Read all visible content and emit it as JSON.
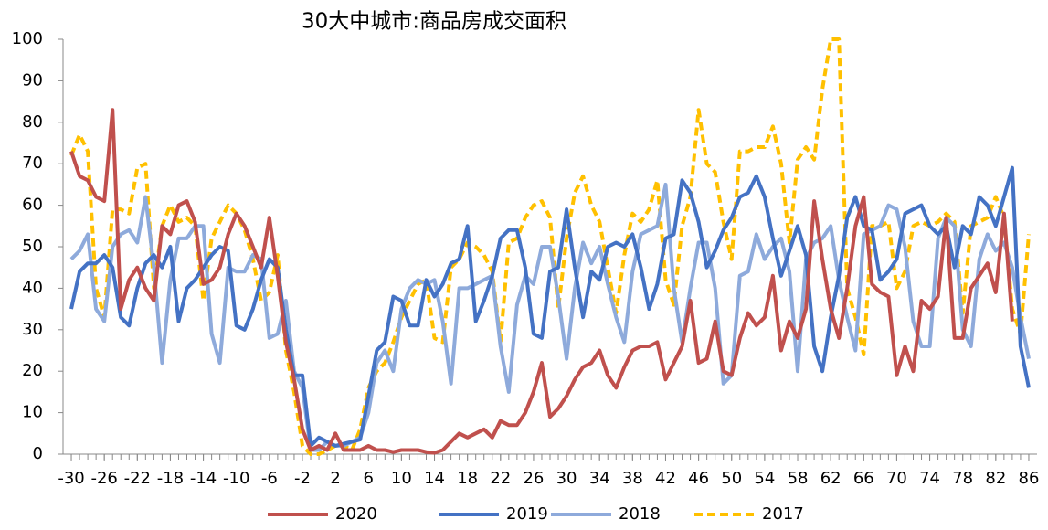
{
  "chart_data": {
    "type": "line",
    "title": "30大中城市:商品房成交面积",
    "x": [
      -30,
      -29,
      -28,
      -27,
      -26,
      -25,
      -24,
      -23,
      -22,
      -21,
      -20,
      -19,
      -18,
      -17,
      -16,
      -15,
      -14,
      -13,
      -12,
      -11,
      -10,
      -9,
      -8,
      -7,
      -6,
      -5,
      -4,
      -3,
      -2,
      -1,
      0,
      1,
      2,
      3,
      4,
      5,
      6,
      7,
      8,
      9,
      10,
      11,
      12,
      13,
      14,
      15,
      16,
      17,
      18,
      19,
      20,
      21,
      22,
      23,
      24,
      25,
      26,
      27,
      28,
      29,
      30,
      31,
      32,
      33,
      34,
      35,
      36,
      37,
      38,
      39,
      40,
      41,
      42,
      43,
      44,
      45,
      46,
      47,
      48,
      49,
      50,
      51,
      52,
      53,
      54,
      55,
      56,
      57,
      58,
      59,
      60,
      61,
      62,
      63,
      64,
      65,
      66,
      67,
      68,
      69,
      70,
      71,
      72,
      73,
      74,
      75,
      76,
      77,
      78,
      79,
      80,
      81,
      82,
      83,
      84,
      85,
      86
    ],
    "series": [
      {
        "name": "2020",
        "color": "#c0504d",
        "style": "solid",
        "values": [
          73,
          67,
          66,
          62,
          61,
          83,
          35,
          42,
          45,
          40,
          37,
          55,
          53,
          60,
          61,
          56,
          41,
          42,
          45,
          53,
          58,
          55,
          50,
          45,
          57,
          43,
          27,
          18,
          6,
          1,
          2,
          1,
          5,
          1,
          1,
          1,
          2,
          1,
          1,
          0.5,
          1,
          1,
          1,
          0.5,
          0.3,
          1,
          3,
          5,
          4,
          5,
          6,
          4,
          8,
          7,
          7,
          10,
          15,
          22,
          9,
          11,
          14,
          18,
          21,
          22,
          25,
          19,
          16,
          21,
          25,
          26,
          26,
          27,
          18,
          22,
          26,
          37,
          22,
          23,
          32,
          20,
          19,
          28,
          34,
          31,
          33,
          43,
          25,
          32,
          28,
          35,
          61,
          47,
          35,
          28,
          40,
          55,
          62,
          41,
          39,
          38,
          19,
          26,
          20,
          37,
          35,
          38,
          57,
          28,
          28,
          40,
          43,
          46,
          39,
          58,
          32,
          null,
          null
        ]
      },
      {
        "name": "2019",
        "color": "#4472c4",
        "style": "solid",
        "values": [
          35,
          44,
          46,
          46,
          48,
          45,
          33,
          31,
          40,
          46,
          48,
          45,
          50,
          32,
          40,
          42,
          45,
          48,
          50,
          49,
          31,
          30,
          35,
          42,
          47,
          45,
          30,
          19,
          19,
          2,
          4,
          3,
          2,
          2.5,
          3,
          3.5,
          14,
          25,
          27,
          38,
          37,
          31,
          31,
          42,
          38,
          41,
          46,
          47,
          55,
          32,
          37,
          43,
          52,
          54,
          54,
          45,
          29,
          28,
          44,
          45,
          59,
          45,
          33,
          44,
          42,
          50,
          51,
          50,
          53,
          45,
          35,
          41,
          52,
          53,
          66,
          63,
          56,
          45,
          49,
          54,
          57,
          62,
          63,
          67,
          62,
          52,
          43,
          49,
          55,
          48,
          26,
          20,
          33,
          43,
          57,
          62,
          55,
          54,
          42,
          44,
          47,
          58,
          59,
          60,
          55,
          53,
          55,
          45,
          55,
          53,
          62,
          60,
          55,
          62,
          69,
          26,
          16
        ]
      },
      {
        "name": "2018",
        "color": "#8eaadb",
        "style": "solid",
        "values": [
          47,
          49,
          53,
          35,
          32,
          50,
          53,
          54,
          51,
          62,
          45,
          22,
          42,
          52,
          52,
          55,
          55,
          29,
          22,
          45,
          44,
          44,
          48,
          47,
          28,
          29,
          37,
          20,
          16,
          1,
          1,
          3,
          2,
          2,
          3,
          4,
          10,
          22,
          25,
          20,
          35,
          40,
          42,
          41,
          42,
          32,
          17,
          40,
          40,
          41,
          42,
          43,
          26,
          15,
          36,
          43,
          41,
          50,
          50,
          38,
          23,
          40,
          51,
          46,
          50,
          41,
          33,
          27,
          44,
          53,
          54,
          55,
          65,
          40,
          27,
          40,
          51,
          51,
          40,
          17,
          19,
          43,
          44,
          53,
          47,
          50,
          52,
          44,
          20,
          47,
          51,
          52,
          55,
          42,
          33,
          25,
          53,
          54,
          55,
          60,
          59,
          50,
          32,
          26,
          26,
          52,
          57,
          55,
          30,
          26,
          47,
          53,
          49,
          51,
          45,
          33,
          23
        ]
      },
      {
        "name": "2017",
        "color": "#ffc000",
        "style": "dashed",
        "values": [
          72,
          77,
          73,
          40,
          33,
          59,
          59,
          58,
          69,
          70,
          40,
          55,
          60,
          56,
          57,
          55,
          37,
          52,
          56,
          60,
          58,
          54,
          47,
          37,
          39,
          48,
          25,
          15,
          2,
          0,
          0,
          1,
          2,
          2,
          1,
          6,
          16,
          20,
          22,
          27,
          33,
          37,
          41,
          42,
          28,
          27,
          45,
          47,
          51,
          50,
          48,
          44,
          27,
          51,
          52,
          57,
          60,
          61,
          57,
          35,
          52,
          63,
          67,
          60,
          56,
          45,
          34,
          48,
          58,
          56,
          59,
          66,
          42,
          36,
          55,
          62,
          83,
          70,
          68,
          56,
          47,
          73,
          73,
          74,
          74,
          79,
          70,
          51,
          71,
          74,
          71,
          88,
          100,
          100,
          40,
          33,
          24,
          55,
          55,
          56,
          40,
          44,
          55,
          56,
          55,
          56,
          58,
          56,
          34,
          55,
          56,
          57,
          62,
          57,
          35,
          29,
          53
        ]
      }
    ],
    "xlim": [
      -31,
      87
    ],
    "xticks": [
      -30,
      -26,
      -22,
      -18,
      -14,
      -10,
      -6,
      -2,
      2,
      6,
      10,
      14,
      18,
      22,
      26,
      30,
      34,
      38,
      42,
      46,
      50,
      54,
      58,
      62,
      66,
      70,
      74,
      78,
      82,
      86
    ],
    "ylim": [
      0,
      100
    ],
    "yticks": [
      0,
      10,
      20,
      30,
      40,
      50,
      60,
      70,
      80,
      90,
      100
    ],
    "grid": false,
    "legend": "bottom"
  }
}
